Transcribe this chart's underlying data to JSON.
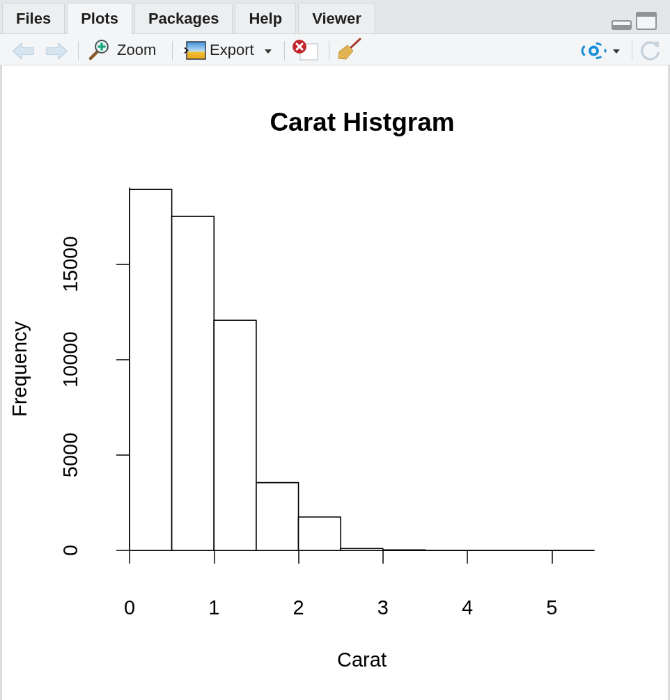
{
  "chart_data": {
    "type": "histogram",
    "title": "Carat Histgram",
    "xlabel": "Carat",
    "ylabel": "Frequency",
    "bins": [
      0,
      0.5,
      1,
      1.5,
      2,
      2.5,
      3,
      3.5,
      4,
      4.5,
      5,
      5.5
    ],
    "values": [
      18920,
      17510,
      12060,
      3550,
      1750,
      100,
      30,
      0,
      0,
      0,
      0
    ],
    "color": "#ffffff",
    "xlim": [
      0,
      5.5
    ],
    "xticks": [
      0,
      1,
      2,
      3,
      4,
      5
    ],
    "ylim": [
      0,
      19000
    ],
    "yticks": [
      0,
      5000,
      10000,
      15000
    ],
    "annotations": [
      "Files",
      "Plots",
      "Packages",
      "Help",
      "Viewer",
      "Zoom",
      "Export"
    ]
  }
}
